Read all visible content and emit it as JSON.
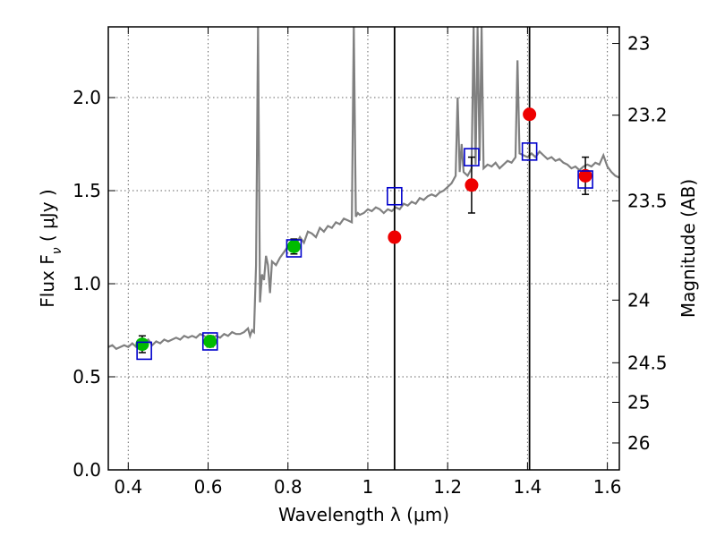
{
  "chart_data": {
    "type": "scatter",
    "xlabel": "Wavelength  λ (μm)",
    "ylabel": "Flux  F",
    "ylabel_sub": "ν",
    "ylabel_unit": "  ( μJy )",
    "y2label": "Magnitude (AB)",
    "xlim": [
      0.35,
      1.63
    ],
    "ylim": [
      0.0,
      2.38
    ],
    "grid": true,
    "x_ticks": [
      {
        "value": 0.4,
        "label": "0.4"
      },
      {
        "value": 0.6,
        "label": "0.6"
      },
      {
        "value": 0.8,
        "label": "0.8"
      },
      {
        "value": 1.0,
        "label": "1"
      },
      {
        "value": 1.2,
        "label": "1.2"
      },
      {
        "value": 1.4,
        "label": "1.4"
      },
      {
        "value": 1.6,
        "label": "1.6"
      }
    ],
    "y_ticks": [
      {
        "value": 0.0,
        "label": "0.0"
      },
      {
        "value": 0.5,
        "label": "0.5"
      },
      {
        "value": 1.0,
        "label": "1.0"
      },
      {
        "value": 1.5,
        "label": "1.5"
      },
      {
        "value": 2.0,
        "label": "2.0"
      }
    ],
    "y2_ticks": [
      {
        "value": 23,
        "label": "23"
      },
      {
        "value": 23.2,
        "label": "23.2"
      },
      {
        "value": 23.5,
        "label": "23.5"
      },
      {
        "value": 24,
        "label": "24"
      },
      {
        "value": 24.5,
        "label": "24.5"
      },
      {
        "value": 25,
        "label": "25"
      },
      {
        "value": 26,
        "label": "26"
      }
    ],
    "vertical_lines": [
      1.067,
      1.405
    ],
    "spectrum": {
      "color": "#808080",
      "x": [
        0.35,
        0.36,
        0.37,
        0.38,
        0.39,
        0.4,
        0.41,
        0.42,
        0.43,
        0.44,
        0.45,
        0.46,
        0.47,
        0.48,
        0.49,
        0.5,
        0.51,
        0.52,
        0.53,
        0.54,
        0.55,
        0.56,
        0.57,
        0.58,
        0.59,
        0.6,
        0.61,
        0.62,
        0.63,
        0.64,
        0.65,
        0.66,
        0.67,
        0.68,
        0.69,
        0.7,
        0.705,
        0.71,
        0.715,
        0.72,
        0.725,
        0.73,
        0.735,
        0.74,
        0.745,
        0.75,
        0.755,
        0.76,
        0.77,
        0.78,
        0.79,
        0.8,
        0.81,
        0.82,
        0.83,
        0.84,
        0.85,
        0.86,
        0.87,
        0.88,
        0.89,
        0.9,
        0.91,
        0.92,
        0.93,
        0.94,
        0.95,
        0.96,
        0.965,
        0.97,
        0.975,
        0.98,
        0.99,
        1.0,
        1.01,
        1.02,
        1.03,
        1.04,
        1.05,
        1.06,
        1.07,
        1.08,
        1.09,
        1.1,
        1.11,
        1.12,
        1.13,
        1.14,
        1.15,
        1.16,
        1.17,
        1.18,
        1.19,
        1.2,
        1.21,
        1.22,
        1.225,
        1.23,
        1.235,
        1.24,
        1.25,
        1.26,
        1.265,
        1.27,
        1.275,
        1.28,
        1.285,
        1.29,
        1.3,
        1.31,
        1.32,
        1.33,
        1.34,
        1.35,
        1.36,
        1.37,
        1.375,
        1.38,
        1.39,
        1.4,
        1.41,
        1.42,
        1.43,
        1.44,
        1.45,
        1.46,
        1.47,
        1.48,
        1.49,
        1.5,
        1.51,
        1.52,
        1.53,
        1.54,
        1.55,
        1.56,
        1.57,
        1.58,
        1.59,
        1.6,
        1.61,
        1.62,
        1.63
      ],
      "y": [
        0.66,
        0.67,
        0.65,
        0.66,
        0.67,
        0.66,
        0.68,
        0.66,
        0.67,
        0.68,
        0.7,
        0.67,
        0.69,
        0.68,
        0.7,
        0.69,
        0.7,
        0.71,
        0.7,
        0.72,
        0.71,
        0.72,
        0.71,
        0.73,
        0.72,
        0.7,
        0.71,
        0.72,
        0.71,
        0.73,
        0.72,
        0.74,
        0.73,
        0.73,
        0.74,
        0.76,
        0.72,
        0.75,
        0.74,
        1.1,
        2.38,
        0.9,
        1.05,
        1.02,
        1.15,
        1.1,
        0.95,
        1.12,
        1.1,
        1.14,
        1.17,
        1.2,
        1.18,
        1.21,
        1.25,
        1.22,
        1.28,
        1.27,
        1.25,
        1.3,
        1.28,
        1.31,
        1.3,
        1.33,
        1.32,
        1.35,
        1.34,
        1.33,
        2.38,
        1.36,
        1.38,
        1.37,
        1.38,
        1.4,
        1.39,
        1.41,
        1.4,
        1.38,
        1.4,
        1.39,
        1.41,
        1.4,
        1.43,
        1.42,
        1.44,
        1.43,
        1.46,
        1.45,
        1.47,
        1.48,
        1.47,
        1.49,
        1.5,
        1.52,
        1.54,
        1.58,
        2.0,
        1.6,
        1.75,
        1.6,
        1.58,
        1.62,
        2.38,
        1.64,
        2.38,
        1.66,
        2.38,
        1.62,
        1.64,
        1.63,
        1.65,
        1.62,
        1.64,
        1.66,
        1.65,
        1.68,
        2.2,
        1.7,
        1.69,
        1.68,
        1.7,
        1.68,
        1.71,
        1.69,
        1.67,
        1.68,
        1.66,
        1.67,
        1.65,
        1.64,
        1.62,
        1.63,
        1.61,
        1.63,
        1.64,
        1.63,
        1.65,
        1.64,
        1.69,
        1.63,
        1.6,
        1.58,
        1.57
      ]
    },
    "series": [
      {
        "marker": "circle",
        "color": "#00bb00",
        "points": [
          {
            "x": 0.435,
            "y": 0.675,
            "err": 0.045
          },
          {
            "x": 0.605,
            "y": 0.69,
            "err": 0.03
          },
          {
            "x": 0.815,
            "y": 1.2,
            "err": 0.04
          }
        ]
      },
      {
        "marker": "circle",
        "color": "#ee0000",
        "points": [
          {
            "x": 1.067,
            "y": 1.25
          },
          {
            "x": 1.26,
            "y": 1.53,
            "err": 0.15
          },
          {
            "x": 1.405,
            "y": 1.91
          },
          {
            "x": 1.545,
            "y": 1.58,
            "err": 0.1
          }
        ]
      },
      {
        "marker": "open-square",
        "color": "#0000cc",
        "points": [
          {
            "x": 0.44,
            "y": 0.64
          },
          {
            "x": 0.605,
            "y": 0.69
          },
          {
            "x": 0.815,
            "y": 1.19
          },
          {
            "x": 1.067,
            "y": 1.47
          },
          {
            "x": 1.26,
            "y": 1.68
          },
          {
            "x": 1.405,
            "y": 1.71
          },
          {
            "x": 1.545,
            "y": 1.56
          }
        ]
      }
    ]
  }
}
